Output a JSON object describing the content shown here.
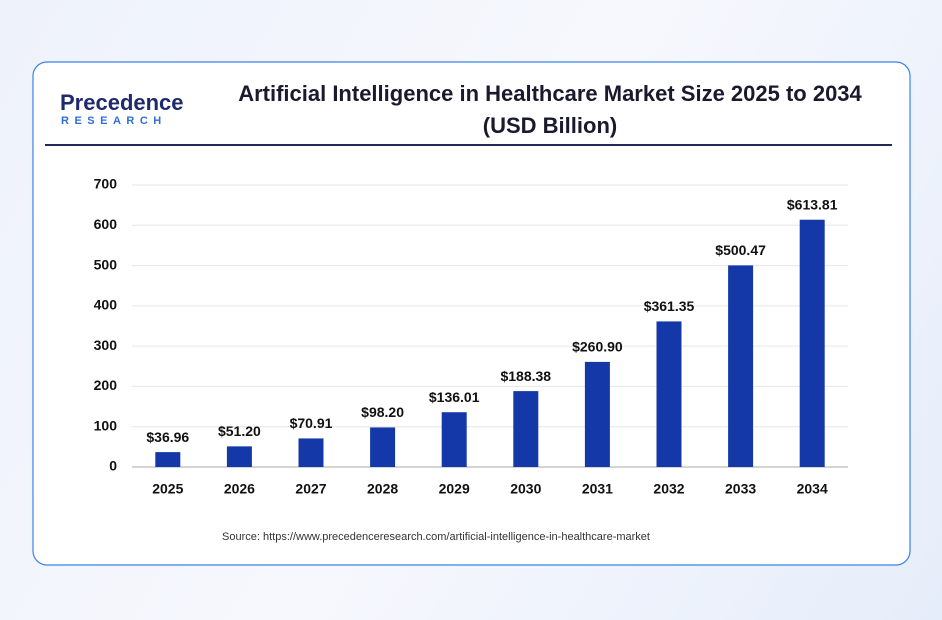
{
  "logo": {
    "name": "Precedence",
    "tagline": "RESEARCH"
  },
  "chart_data": {
    "type": "bar",
    "title": "Artificial Intelligence in Healthcare Market Size 2025 to 2034",
    "subtitle": "(USD Billion)",
    "categories": [
      "2025",
      "2026",
      "2027",
      "2028",
      "2029",
      "2030",
      "2031",
      "2032",
      "2033",
      "2034"
    ],
    "values": [
      36.96,
      51.2,
      70.91,
      98.2,
      136.01,
      188.38,
      260.9,
      361.35,
      500.47,
      613.81
    ],
    "value_labels": [
      "$36.96",
      "$51.20",
      "$70.91",
      "$98.20",
      "$136.01",
      "$188.38",
      "$260.90",
      "$361.35",
      "$500.47",
      "$613.81"
    ],
    "color": "#1538a8",
    "ylim": [
      0,
      700
    ],
    "yticks": [
      0,
      100,
      200,
      300,
      400,
      500,
      600,
      700
    ],
    "grid": true,
    "source": "Source: https://www.precedenceresearch.com/artificial-intelligence-in-healthcare-market"
  }
}
